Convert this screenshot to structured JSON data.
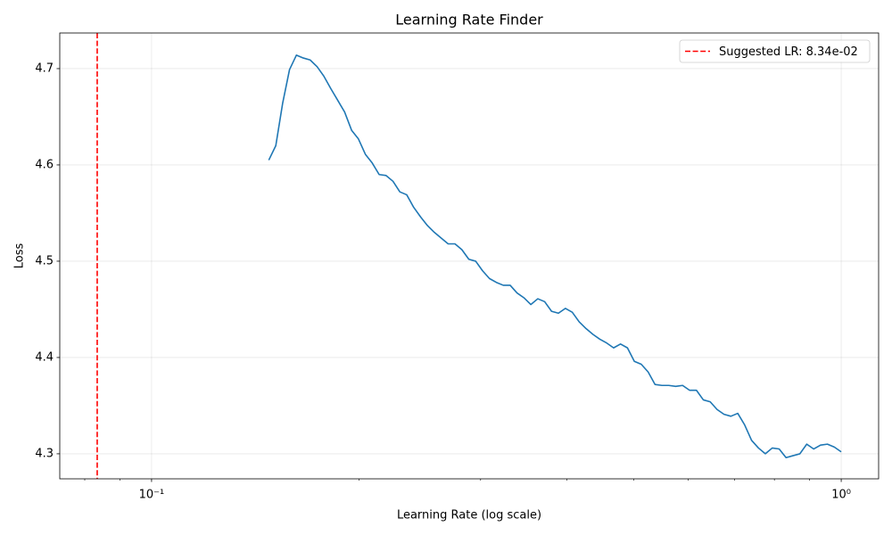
{
  "chart_data": {
    "type": "line",
    "title": "Learning Rate Finder",
    "xlabel": "Learning Rate (log scale)",
    "ylabel": "Loss",
    "xscale": "log",
    "grid": true,
    "legend": "upper right",
    "xlim": [
      0.0736,
      1.133
    ],
    "ylim": [
      4.274,
      4.737
    ],
    "xticks": [
      {
        "value": 0.1,
        "label": "10⁻¹"
      },
      {
        "value": 1,
        "label": "10⁰"
      }
    ],
    "xminorticks": [
      0.08,
      0.09,
      0.2,
      0.3,
      0.4,
      0.5,
      0.6,
      0.7,
      0.8,
      0.9
    ],
    "yticks": [
      4.3,
      4.4,
      4.5,
      4.6,
      4.7
    ],
    "x": [
      0.1479,
      0.1514,
      0.1549,
      0.1585,
      0.1622,
      0.166,
      0.1698,
      0.1738,
      0.1778,
      0.182,
      0.1862,
      0.1905,
      0.195,
      0.1995,
      0.2042,
      0.2089,
      0.2138,
      0.2188,
      0.2239,
      0.2291,
      0.2344,
      0.2399,
      0.2455,
      0.2512,
      0.257,
      0.263,
      0.2692,
      0.2754,
      0.2818,
      0.2884,
      0.2951,
      0.302,
      0.309,
      0.3162,
      0.3236,
      0.3311,
      0.3388,
      0.3467,
      0.3548,
      0.3631,
      0.3715,
      0.3802,
      0.389,
      0.3981,
      0.4074,
      0.4169,
      0.4266,
      0.4365,
      0.4467,
      0.4571,
      0.4677,
      0.4786,
      0.4898,
      0.5012,
      0.5129,
      0.5248,
      0.537,
      0.5495,
      0.5623,
      0.5754,
      0.5888,
      0.6026,
      0.6166,
      0.631,
      0.6457,
      0.6607,
      0.6761,
      0.6918,
      0.7079,
      0.7244,
      0.7413,
      0.7586,
      0.7762,
      0.7943,
      0.8128,
      0.8318,
      0.8511,
      0.871,
      0.8913,
      0.912,
      0.9333,
      0.955,
      0.9772,
      1.0
    ],
    "series": [
      {
        "color": "#1f77b4",
        "values": [
          4.605,
          4.62,
          4.664,
          4.699,
          4.714,
          4.711,
          4.709,
          4.702,
          4.692,
          4.679,
          4.667,
          4.655,
          4.636,
          4.627,
          4.611,
          4.602,
          4.59,
          4.589,
          4.583,
          4.572,
          4.569,
          4.556,
          4.546,
          4.537,
          4.53,
          4.524,
          4.518,
          4.518,
          4.512,
          4.502,
          4.5,
          4.49,
          4.482,
          4.478,
          4.475,
          4.475,
          4.467,
          4.462,
          4.455,
          4.461,
          4.458,
          4.448,
          4.446,
          4.451,
          4.447,
          4.437,
          4.43,
          4.424,
          4.419,
          4.415,
          4.41,
          4.414,
          4.41,
          4.396,
          4.393,
          4.385,
          4.372,
          4.371,
          4.371,
          4.37,
          4.371,
          4.366,
          4.366,
          4.356,
          4.354,
          4.346,
          4.341,
          4.339,
          4.342,
          4.33,
          4.314,
          4.306,
          4.3,
          4.306,
          4.305,
          4.296,
          4.298,
          4.3,
          4.31,
          4.305,
          4.309,
          4.31,
          4.307,
          4.302
        ]
      }
    ],
    "vline": {
      "name": "Suggested LR: 8.34e-02",
      "x": 0.0834,
      "color": "red"
    }
  }
}
